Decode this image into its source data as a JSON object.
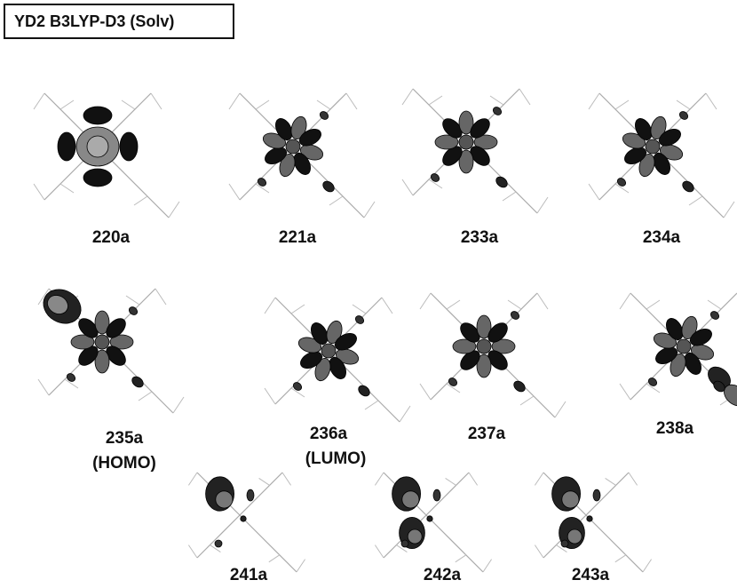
{
  "title": "YD2 B3LYP-D3 (Solv)",
  "orbitals": [
    {
      "label": "220a"
    },
    {
      "label": "221a"
    },
    {
      "label": "233a"
    },
    {
      "label": "234a"
    },
    {
      "label": "235a",
      "note": "(HOMO)"
    },
    {
      "label": "236a",
      "note": "(LUMO)"
    },
    {
      "label": "237a"
    },
    {
      "label": "238a"
    },
    {
      "label": "241a"
    },
    {
      "label": "242a"
    },
    {
      "label": "243a"
    }
  ]
}
